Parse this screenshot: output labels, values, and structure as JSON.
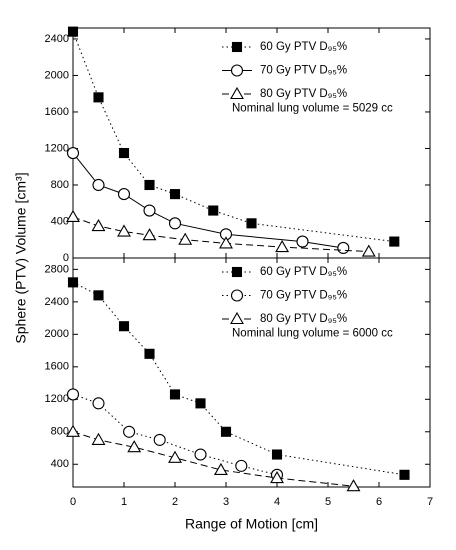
{
  "chart_data": [
    {
      "type": "line",
      "ylabel": "Sphere (PTV) Volume [cm³]",
      "annotation": "Nominal lung volume = 5029 cc",
      "xlim": [
        0,
        7
      ],
      "xticks": [
        0,
        1,
        2,
        3,
        4,
        5,
        6,
        7
      ],
      "show_xtick_labels": false,
      "ylim": [
        0,
        2520
      ],
      "yticks": [
        0,
        400,
        800,
        1200,
        1600,
        2000,
        2400
      ],
      "series": [
        {
          "name": "60 Gy PTV D₉₅%",
          "color": "#000000",
          "marker": "filled-square",
          "line_style": "dotted",
          "x": [
            0,
            0.5,
            1,
            1.5,
            2,
            2.75,
            3.5,
            6.3
          ],
          "values": [
            2480,
            1760,
            1150,
            800,
            700,
            520,
            380,
            180
          ]
        },
        {
          "name": "70 Gy PTV D₉₅%",
          "color": "#000000",
          "marker": "open-circle",
          "line_style": "solid",
          "x": [
            0,
            0.5,
            1,
            1.5,
            2,
            3,
            4.5,
            5.3
          ],
          "values": [
            1150,
            800,
            700,
            520,
            380,
            260,
            180,
            110
          ]
        },
        {
          "name": "80 Gy PTV D₉₅%",
          "color": "#000000",
          "marker": "open-triangle",
          "line_style": "dashed",
          "x": [
            0,
            0.5,
            1,
            1.5,
            2.2,
            3,
            4.1,
            5.8
          ],
          "values": [
            450,
            350,
            290,
            250,
            200,
            160,
            120,
            70
          ]
        }
      ]
    },
    {
      "type": "line",
      "xlabel": "Range of Motion [cm]",
      "annotation": "Nominal lung volume = 6000 cc",
      "xlim": [
        0,
        7
      ],
      "xticks": [
        0,
        1,
        2,
        3,
        4,
        5,
        6,
        7
      ],
      "show_xtick_labels": true,
      "ylim": [
        120,
        2940
      ],
      "yticks": [
        400,
        800,
        1200,
        1600,
        2000,
        2400,
        2800
      ],
      "series": [
        {
          "name": "60 Gy PTV D₉₅%",
          "color": "#000000",
          "marker": "filled-square",
          "line_style": "dotted",
          "x": [
            0,
            0.5,
            1,
            1.5,
            2,
            2.5,
            3,
            4,
            6.5
          ],
          "values": [
            2640,
            2480,
            2100,
            1760,
            1260,
            1150,
            800,
            520,
            270
          ]
        },
        {
          "name": "70 Gy PTV D₉₅%",
          "color": "#000000",
          "marker": "open-circle",
          "line_style": "dotted",
          "x": [
            0,
            0.5,
            1.1,
            1.7,
            2.5,
            3.3,
            4
          ],
          "values": [
            1260,
            1150,
            800,
            700,
            520,
            380,
            270
          ]
        },
        {
          "name": "80 Gy PTV D₉₅%",
          "color": "#000000",
          "marker": "open-triangle",
          "line_style": "dashed",
          "x": [
            0,
            0.5,
            1.2,
            2,
            2.9,
            4,
            5.5
          ],
          "values": [
            800,
            700,
            610,
            480,
            330,
            230,
            130
          ]
        }
      ]
    }
  ]
}
